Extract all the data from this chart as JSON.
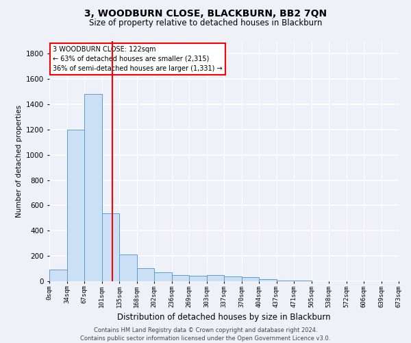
{
  "title": "3, WOODBURN CLOSE, BLACKBURN, BB2 7QN",
  "subtitle": "Size of property relative to detached houses in Blackburn",
  "xlabel": "Distribution of detached houses by size in Blackburn",
  "ylabel": "Number of detached properties",
  "bin_labels": [
    "0sqm",
    "34sqm",
    "67sqm",
    "101sqm",
    "135sqm",
    "168sqm",
    "202sqm",
    "236sqm",
    "269sqm",
    "303sqm",
    "337sqm",
    "370sqm",
    "404sqm",
    "437sqm",
    "471sqm",
    "505sqm",
    "538sqm",
    "572sqm",
    "606sqm",
    "639sqm",
    "673sqm"
  ],
  "bar_values": [
    90,
    1200,
    1480,
    540,
    210,
    105,
    70,
    50,
    45,
    50,
    40,
    35,
    18,
    6,
    3,
    1,
    0,
    0,
    0,
    0
  ],
  "bar_color": "#cce0f5",
  "bar_edgecolor": "#5b9bd5",
  "ylim": [
    0,
    1900
  ],
  "yticks": [
    0,
    200,
    400,
    600,
    800,
    1000,
    1200,
    1400,
    1600,
    1800
  ],
  "red_line_x": 3.0,
  "annotation_text_line1": "3 WOODBURN CLOSE: 122sqm",
  "annotation_text_line2": "← 63% of detached houses are smaller (2,315)",
  "annotation_text_line3": "36% of semi-detached houses are larger (1,331) →",
  "footer_line1": "Contains HM Land Registry data © Crown copyright and database right 2024.",
  "footer_line2": "Contains public sector information licensed under the Open Government Licence v3.0.",
  "background_color": "#eef2f8",
  "plot_bg_color": "#eef2f8",
  "grid_color": "#ffffff",
  "title_fontsize": 10,
  "subtitle_fontsize": 8.5
}
